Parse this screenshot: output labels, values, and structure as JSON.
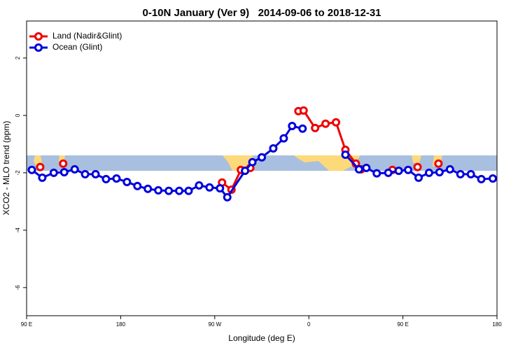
{
  "chart_data": {
    "type": "line",
    "title": "0-10N January (Ver 9)   2014-09-06 to 2018-12-31",
    "x_label": "Longitude (deg E)",
    "y_label": "XCO2 - MLO trend (ppm)",
    "xlim": [
      90,
      540
    ],
    "ylim": [
      -6.98,
      3.29
    ],
    "xticks": [
      {
        "value": 90,
        "label": "90 E"
      },
      {
        "value": 180,
        "label": "180"
      },
      {
        "value": 270,
        "label": "90 W"
      },
      {
        "value": 360,
        "label": "0"
      },
      {
        "value": 450,
        "label": "90 E"
      },
      {
        "value": 540,
        "label": "180"
      }
    ],
    "yticks": [
      2,
      0,
      -2,
      -4,
      -6
    ],
    "legend": "top-left",
    "series": [
      {
        "name": "Land (Nadir&Glint)",
        "color": "#ee0000",
        "x": [
          103,
          null,
          125,
          null,
          277,
          286,
          295,
          304,
          null,
          350,
          355,
          366,
          376,
          386,
          395,
          405,
          410,
          null,
          440,
          null,
          464,
          null,
          484
        ],
        "values": [
          -1.8,
          null,
          -1.68,
          null,
          -2.34,
          -2.59,
          -1.9,
          -1.83,
          null,
          0.15,
          0.17,
          -0.44,
          -0.29,
          -0.24,
          -1.2,
          -1.68,
          -1.88,
          null,
          -1.9,
          null,
          -1.8,
          null,
          -1.68
        ]
      },
      {
        "name": "Ocean (Glint)",
        "color": "#0000dd",
        "x": [
          95,
          105,
          116,
          126,
          136,
          146,
          156,
          166,
          176,
          186,
          196,
          206,
          216,
          226,
          236,
          245,
          255,
          265,
          275,
          282,
          299,
          306,
          315,
          326,
          336,
          344,
          354,
          null,
          395,
          408,
          415,
          425,
          436,
          446,
          455,
          465,
          475,
          485,
          495,
          505,
          515,
          525,
          536
        ],
        "values": [
          -1.9,
          -2.17,
          -2.0,
          -1.98,
          -1.88,
          -2.05,
          -2.05,
          -2.22,
          -2.2,
          -2.32,
          -2.46,
          -2.56,
          -2.61,
          -2.63,
          -2.63,
          -2.63,
          -2.44,
          -2.51,
          -2.54,
          -2.85,
          -1.93,
          -1.63,
          -1.46,
          -1.15,
          -0.8,
          -0.37,
          -0.46,
          null,
          -1.37,
          -1.88,
          -1.83,
          -2.02,
          -2.0,
          -1.93,
          -1.9,
          -2.17,
          -2.0,
          -1.98,
          -1.88,
          -2.05,
          -2.05,
          -2.22,
          -2.2
        ]
      }
    ]
  }
}
